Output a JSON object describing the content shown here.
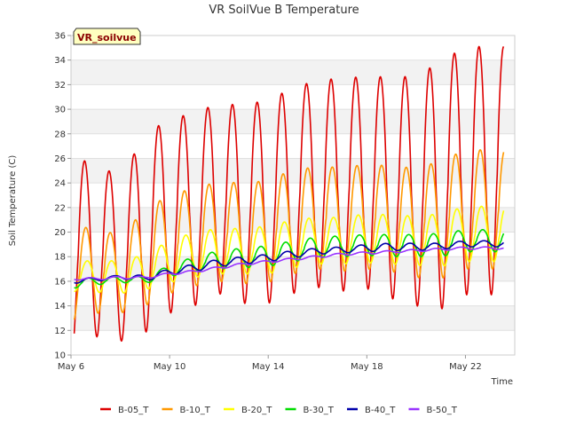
{
  "chart_data": {
    "type": "line",
    "title": "VR SoilVue B Temperature",
    "site_label": "VR_soilvue",
    "xlabel": "Time",
    "ylabel": "Soil Temperature (C)",
    "ylim": [
      10,
      36
    ],
    "yticks": [
      10,
      12,
      14,
      16,
      18,
      20,
      22,
      24,
      26,
      28,
      30,
      32,
      34,
      36
    ],
    "xlim": [
      "2024-05-06",
      "2024-05-24T00:00"
    ],
    "xticks": [
      "May 6",
      "May 10",
      "May 14",
      "May 18",
      "May 22"
    ],
    "grid": "horizontal alternating bands",
    "legend_position": "bottom",
    "series": [
      {
        "name": "B-05_T",
        "color": "#dd0000",
        "daily_max": [
          25.8,
          25.8,
          24.3,
          28.0,
          29.2,
          29.7,
          30.5,
          30.3,
          30.8,
          31.7,
          32.4,
          32.5,
          32.7,
          32.6,
          32.7,
          33.9,
          35.1
        ],
        "daily_min": [
          10.4,
          11.5,
          11.1,
          11.8,
          13.4,
          14.0,
          15.0,
          14.2,
          14.2,
          15.0,
          15.5,
          15.2,
          15.4,
          14.6,
          14.0,
          13.7,
          14.9
        ]
      },
      {
        "name": "B-10_T",
        "color": "#ff9900",
        "daily_max": [
          20.2,
          20.5,
          19.6,
          21.9,
          23.0,
          23.6,
          24.1,
          24.0,
          24.2,
          25.1,
          25.3,
          25.3,
          25.5,
          25.4,
          25.2,
          25.8,
          26.7
        ],
        "daily_min": [
          12.7,
          13.4,
          13.4,
          14.0,
          15.0,
          15.6,
          16.0,
          15.8,
          15.9,
          16.6,
          17.0,
          16.8,
          17.0,
          16.8,
          16.3,
          16.2,
          17.0
        ]
      },
      {
        "name": "B-20_T",
        "color": "#ffff00",
        "daily_max": [
          17.4,
          17.8,
          17.6,
          18.2,
          19.3,
          20.0,
          20.3,
          20.3,
          20.5,
          21.0,
          21.2,
          21.2,
          21.5,
          21.4,
          21.3,
          21.5,
          22.1
        ],
        "daily_min": [
          15.2,
          15.1,
          15.0,
          15.3,
          15.9,
          16.3,
          16.6,
          16.6,
          16.6,
          17.1,
          17.4,
          17.4,
          17.5,
          17.4,
          17.3,
          17.2,
          17.6
        ]
      },
      {
        "name": "B-30_T",
        "color": "#00dd00",
        "daily_max": [
          16.2,
          16.3,
          16.4,
          16.4,
          17.3,
          18.0,
          18.5,
          18.7,
          18.9,
          19.3,
          19.6,
          19.7,
          19.8,
          19.8,
          19.8,
          19.9,
          20.2
        ],
        "daily_min": [
          15.4,
          15.7,
          15.9,
          15.8,
          16.4,
          16.7,
          17.0,
          17.1,
          17.2,
          17.6,
          17.9,
          18.0,
          18.1,
          18.0,
          18.0,
          18.0,
          18.4
        ]
      },
      {
        "name": "B-40_T",
        "color": "#0000aa",
        "daily_max": [
          16.2,
          16.3,
          16.5,
          16.5,
          17.0,
          17.4,
          17.8,
          18.0,
          18.2,
          18.5,
          18.7,
          18.8,
          19.0,
          19.1,
          19.1,
          19.1,
          19.3
        ],
        "daily_min": [
          15.8,
          16.0,
          16.2,
          16.0,
          16.5,
          16.8,
          17.2,
          17.4,
          17.6,
          17.9,
          18.2,
          18.3,
          18.4,
          18.5,
          18.5,
          18.6,
          18.8
        ]
      },
      {
        "name": "B-50_T",
        "color": "#9933ff",
        "daily_max": [
          16.3,
          16.3,
          16.4,
          16.4,
          16.7,
          16.9,
          17.2,
          17.5,
          17.7,
          17.9,
          18.1,
          18.3,
          18.4,
          18.5,
          18.6,
          18.7,
          18.8
        ],
        "daily_min": [
          16.1,
          16.1,
          16.2,
          16.2,
          16.5,
          16.7,
          17.0,
          17.3,
          17.5,
          17.7,
          17.9,
          18.1,
          18.2,
          18.3,
          18.4,
          18.5,
          18.6
        ]
      }
    ]
  }
}
